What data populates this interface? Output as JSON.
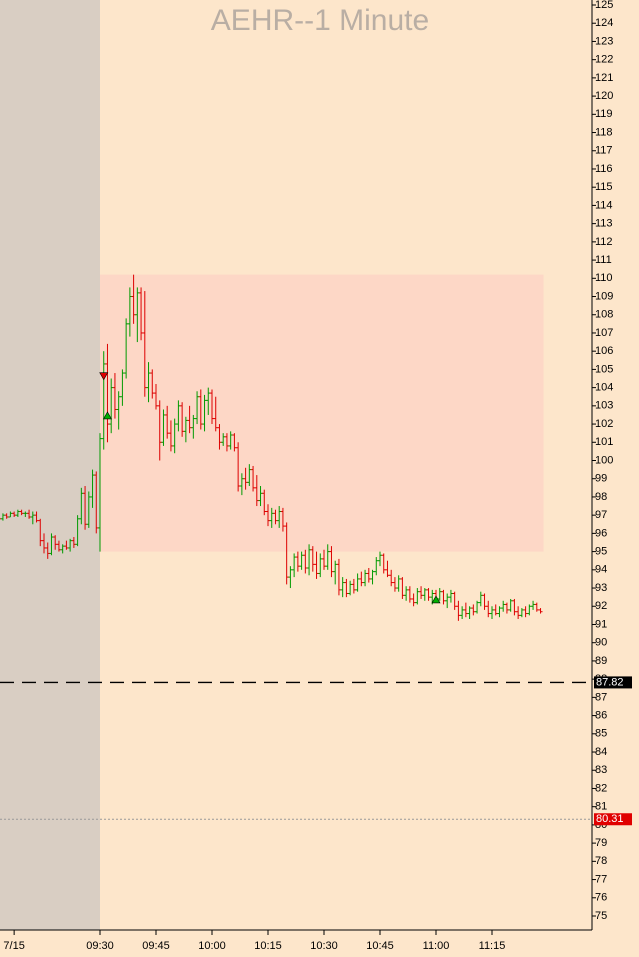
{
  "chart_data": {
    "type": "ohlc",
    "title": "AEHR--1 Minute",
    "categories": [
      null,
      null,
      null,
      null,
      "7/15",
      null,
      null,
      null,
      null,
      null,
      null,
      null,
      null,
      null,
      null,
      null,
      null,
      null,
      null,
      null,
      null,
      null,
      null,
      null,
      null,
      null,
      null,
      "09:30",
      null,
      null,
      null,
      null,
      null,
      null,
      null,
      null,
      null,
      null,
      null,
      null,
      null,
      null,
      "09:45",
      null,
      null,
      null,
      null,
      null,
      null,
      null,
      null,
      null,
      null,
      null,
      null,
      null,
      null,
      "10:00",
      null,
      null,
      null,
      null,
      null,
      null,
      null,
      null,
      null,
      null,
      null,
      null,
      null,
      null,
      "10:15",
      null,
      null,
      null,
      null,
      null,
      null,
      null,
      null,
      null,
      null,
      null,
      null,
      null,
      null,
      "10:30",
      null,
      null,
      null,
      null,
      null,
      null,
      null,
      null,
      null,
      null,
      null,
      null,
      null,
      null,
      "10:45",
      null,
      null,
      null,
      null,
      null,
      null,
      null,
      null,
      null,
      null,
      null,
      null,
      null,
      null,
      "11:00",
      null,
      null,
      null,
      null,
      null,
      null,
      null,
      null,
      null,
      null,
      null,
      null,
      null,
      null,
      "11:15",
      null,
      null,
      null,
      null,
      null,
      null,
      null,
      null,
      null,
      null,
      null,
      null,
      null
    ],
    "ohlc": [
      [
        96.9,
        97.0,
        96.7,
        96.8
      ],
      [
        96.8,
        97.1,
        96.7,
        97.0
      ],
      [
        97.0,
        97.1,
        96.8,
        96.9
      ],
      [
        96.9,
        97.2,
        96.9,
        97.1
      ],
      [
        97.1,
        97.2,
        96.9,
        97.0
      ],
      [
        97.0,
        97.3,
        96.9,
        97.2
      ],
      [
        97.2,
        97.3,
        97.0,
        97.1
      ],
      [
        97.1,
        97.2,
        96.9,
        97.1
      ],
      [
        97.1,
        97.3,
        96.8,
        96.9
      ],
      [
        96.9,
        97.2,
        96.5,
        97.0
      ],
      [
        97.0,
        97.2,
        96.6,
        96.7
      ],
      [
        96.7,
        96.8,
        95.3,
        95.6
      ],
      [
        95.6,
        96.0,
        94.9,
        95.2
      ],
      [
        95.2,
        95.5,
        94.6,
        94.9
      ],
      [
        94.9,
        96.0,
        94.8,
        95.8
      ],
      [
        95.8,
        95.9,
        95.1,
        95.4
      ],
      [
        95.4,
        95.6,
        95.0,
        95.1
      ],
      [
        95.1,
        95.4,
        94.9,
        95.3
      ],
      [
        95.3,
        95.6,
        95.1,
        95.2
      ],
      [
        95.2,
        95.7,
        95.0,
        95.6
      ],
      [
        95.6,
        95.8,
        95.2,
        95.4
      ],
      [
        95.4,
        97.0,
        95.3,
        96.8
      ],
      [
        96.8,
        98.5,
        96.5,
        98.2
      ],
      [
        98.2,
        98.6,
        96.2,
        96.5
      ],
      [
        96.5,
        98.3,
        96.3,
        98.0
      ],
      [
        98.0,
        99.5,
        97.4,
        99.2
      ],
      [
        99.2,
        99.4,
        96.0,
        96.3
      ],
      [
        96.3,
        101.5,
        95.0,
        101.2
      ],
      [
        101.2,
        106.0,
        100.6,
        105.3
      ],
      [
        105.3,
        106.4,
        101.0,
        102.0
      ],
      [
        102.0,
        104.5,
        101.5,
        104.0
      ],
      [
        104.0,
        104.8,
        102.3,
        102.8
      ],
      [
        102.8,
        103.8,
        101.7,
        103.5
      ],
      [
        103.5,
        105.0,
        103.0,
        104.8
      ],
      [
        104.8,
        107.8,
        104.5,
        107.5
      ],
      [
        107.5,
        109.5,
        106.8,
        109.0
      ],
      [
        109.0,
        110.2,
        107.5,
        108.0
      ],
      [
        108.0,
        109.5,
        106.5,
        109.2
      ],
      [
        109.2,
        109.5,
        106.6,
        107.0
      ],
      [
        107.0,
        109.3,
        103.5,
        104.0
      ],
      [
        104.0,
        105.4,
        103.2,
        104.8
      ],
      [
        104.8,
        105.0,
        103.4,
        103.7
      ],
      [
        103.7,
        104.2,
        102.8,
        103.0
      ],
      [
        103.0,
        103.3,
        100.0,
        101.0
      ],
      [
        101.0,
        102.8,
        100.8,
        102.5
      ],
      [
        102.5,
        103.0,
        101.2,
        101.5
      ],
      [
        101.5,
        102.2,
        100.5,
        100.8
      ],
      [
        100.8,
        102.3,
        100.4,
        102.0
      ],
      [
        102.0,
        103.3,
        101.6,
        103.0
      ],
      [
        103.0,
        103.2,
        101.3,
        101.6
      ],
      [
        101.6,
        102.4,
        101.0,
        102.2
      ],
      [
        102.2,
        103.0,
        101.5,
        101.8
      ],
      [
        101.8,
        102.5,
        101.2,
        102.3
      ],
      [
        102.3,
        103.8,
        102.0,
        103.5
      ],
      [
        103.5,
        103.9,
        101.7,
        102.0
      ],
      [
        102.0,
        103.6,
        101.6,
        103.3
      ],
      [
        103.3,
        104.0,
        102.5,
        103.7
      ],
      [
        103.7,
        103.9,
        102.0,
        102.3
      ],
      [
        102.3,
        103.5,
        101.6,
        101.8
      ],
      [
        101.8,
        102.0,
        100.6,
        101.0
      ],
      [
        101.0,
        101.5,
        100.8,
        101.3
      ],
      [
        101.3,
        101.5,
        100.5,
        100.8
      ],
      [
        100.8,
        101.6,
        100.6,
        101.4
      ],
      [
        101.4,
        101.5,
        100.5,
        100.7
      ],
      [
        100.7,
        101.0,
        98.3,
        98.6
      ],
      [
        98.6,
        99.3,
        98.1,
        99.0
      ],
      [
        99.0,
        99.6,
        98.4,
        98.8
      ],
      [
        98.8,
        99.8,
        98.6,
        99.5
      ],
      [
        99.5,
        99.7,
        98.3,
        98.5
      ],
      [
        98.5,
        99.2,
        97.5,
        97.8
      ],
      [
        97.8,
        98.6,
        97.5,
        98.2
      ],
      [
        98.2,
        98.4,
        97.0,
        97.2
      ],
      [
        97.2,
        97.6,
        96.4,
        96.7
      ],
      [
        96.7,
        97.4,
        96.3,
        97.1
      ],
      [
        97.1,
        97.3,
        96.5,
        96.7
      ],
      [
        96.7,
        97.5,
        96.3,
        97.2
      ],
      [
        97.2,
        97.4,
        96.1,
        96.4
      ],
      [
        96.4,
        96.6,
        93.2,
        93.6
      ],
      [
        93.6,
        94.2,
        93.0,
        94.0
      ],
      [
        94.0,
        94.9,
        93.6,
        94.7
      ],
      [
        94.7,
        95.0,
        93.9,
        94.2
      ],
      [
        94.2,
        95.0,
        94.0,
        94.8
      ],
      [
        94.8,
        95.1,
        93.8,
        94.1
      ],
      [
        94.1,
        95.4,
        93.7,
        95.1
      ],
      [
        95.1,
        95.3,
        93.9,
        94.3
      ],
      [
        94.3,
        95.0,
        93.5,
        93.8
      ],
      [
        93.8,
        94.9,
        93.6,
        94.6
      ],
      [
        94.6,
        95.1,
        94.0,
        94.2
      ],
      [
        94.2,
        95.4,
        94.0,
        95.0
      ],
      [
        95.0,
        95.3,
        93.6,
        93.9
      ],
      [
        93.9,
        94.5,
        93.2,
        94.3
      ],
      [
        94.3,
        94.6,
        92.6,
        92.9
      ],
      [
        92.9,
        93.6,
        92.5,
        93.3
      ],
      [
        93.3,
        93.5,
        92.5,
        92.7
      ],
      [
        92.7,
        93.4,
        92.6,
        93.2
      ],
      [
        93.2,
        93.5,
        92.7,
        92.9
      ],
      [
        92.9,
        93.8,
        92.8,
        93.5
      ],
      [
        93.5,
        93.9,
        93.1,
        93.3
      ],
      [
        93.3,
        94.0,
        93.1,
        93.8
      ],
      [
        93.8,
        94.1,
        93.3,
        93.5
      ],
      [
        93.5,
        94.0,
        93.2,
        93.9
      ],
      [
        93.9,
        94.7,
        93.7,
        94.5
      ],
      [
        94.5,
        95.0,
        94.2,
        94.8
      ],
      [
        94.8,
        94.9,
        93.8,
        94.0
      ],
      [
        94.0,
        94.5,
        93.6,
        93.7
      ],
      [
        93.7,
        94.0,
        93.1,
        93.3
      ],
      [
        93.3,
        93.6,
        92.8,
        93.0
      ],
      [
        93.0,
        93.7,
        92.8,
        93.5
      ],
      [
        93.5,
        93.6,
        92.4,
        92.6
      ],
      [
        92.6,
        93.1,
        92.3,
        92.9
      ],
      [
        92.9,
        93.1,
        92.2,
        92.4
      ],
      [
        92.4,
        92.7,
        92.0,
        92.2
      ],
      [
        92.2,
        93.0,
        92.1,
        92.8
      ],
      [
        92.8,
        93.1,
        92.4,
        92.6
      ],
      [
        92.6,
        93.0,
        92.3,
        92.9
      ],
      [
        92.9,
        93.0,
        92.3,
        92.5
      ],
      [
        92.5,
        92.9,
        92.1,
        92.7
      ],
      [
        92.7,
        92.9,
        92.2,
        92.4
      ],
      [
        92.4,
        93.0,
        92.3,
        92.8
      ],
      [
        92.8,
        92.9,
        92.1,
        92.3
      ],
      [
        92.3,
        92.7,
        91.9,
        92.5
      ],
      [
        92.5,
        92.9,
        92.2,
        92.7
      ],
      [
        92.7,
        92.8,
        91.8,
        92.0
      ],
      [
        92.0,
        92.3,
        91.2,
        91.5
      ],
      [
        91.5,
        92.0,
        91.3,
        91.8
      ],
      [
        91.8,
        92.2,
        91.4,
        91.6
      ],
      [
        91.6,
        92.0,
        91.3,
        91.9
      ],
      [
        91.9,
        92.1,
        91.5,
        91.7
      ],
      [
        91.7,
        92.3,
        91.6,
        92.2
      ],
      [
        92.2,
        92.8,
        92.0,
        92.6
      ],
      [
        92.6,
        92.7,
        91.8,
        92.0
      ],
      [
        92.0,
        92.3,
        91.4,
        91.6
      ],
      [
        91.6,
        92.0,
        91.3,
        91.8
      ],
      [
        91.8,
        92.1,
        91.5,
        91.6
      ],
      [
        91.6,
        92.0,
        91.4,
        91.9
      ],
      [
        91.9,
        92.3,
        91.7,
        92.1
      ],
      [
        92.1,
        92.2,
        91.6,
        91.8
      ],
      [
        91.8,
        92.4,
        91.7,
        92.3
      ],
      [
        92.3,
        92.4,
        91.5,
        91.7
      ],
      [
        91.7,
        92.0,
        91.3,
        91.5
      ],
      [
        91.5,
        91.9,
        91.4,
        91.8
      ],
      [
        91.8,
        92.0,
        91.4,
        91.6
      ],
      [
        91.6,
        92.1,
        91.5,
        92.0
      ],
      [
        92.0,
        92.3,
        91.8,
        92.1
      ],
      [
        92.1,
        92.2,
        91.7,
        91.8
      ],
      [
        91.8,
        91.9,
        91.6,
        91.7
      ]
    ],
    "up_color": "#009a00",
    "down_color": "#dd0000",
    "ylim": [
      75,
      125
    ],
    "yticks": [
      75,
      76,
      77,
      78,
      79,
      80,
      81,
      82,
      83,
      84,
      85,
      86,
      87,
      88,
      89,
      90,
      91,
      92,
      93,
      94,
      95,
      96,
      97,
      98,
      99,
      100,
      101,
      102,
      103,
      104,
      105,
      106,
      107,
      108,
      109,
      110,
      111,
      112,
      113,
      114,
      115,
      116,
      117,
      118,
      119,
      120,
      121,
      122,
      123,
      124,
      125
    ],
    "premarket_end_index": 27,
    "premarket_color": "#d9cec3",
    "background": "#fde6cb",
    "zone": {
      "from_index": 27,
      "to_index": 145,
      "ylim": [
        95,
        110.2
      ],
      "color": "#fdd7c6"
    },
    "signals": [
      {
        "index": 28,
        "value": 104.6,
        "direction": "down",
        "color": "#dd0000"
      },
      {
        "index": 29,
        "value": 102.5,
        "direction": "up",
        "color": "#00b000"
      },
      {
        "index": 117,
        "value": 92.4,
        "direction": "up",
        "color": "#00b000"
      }
    ],
    "reference_lines": [
      {
        "value": 87.82,
        "style": "dashed",
        "color": "#000000"
      },
      {
        "value": 80.31,
        "style": "dotted",
        "color": "#e00000"
      }
    ]
  }
}
